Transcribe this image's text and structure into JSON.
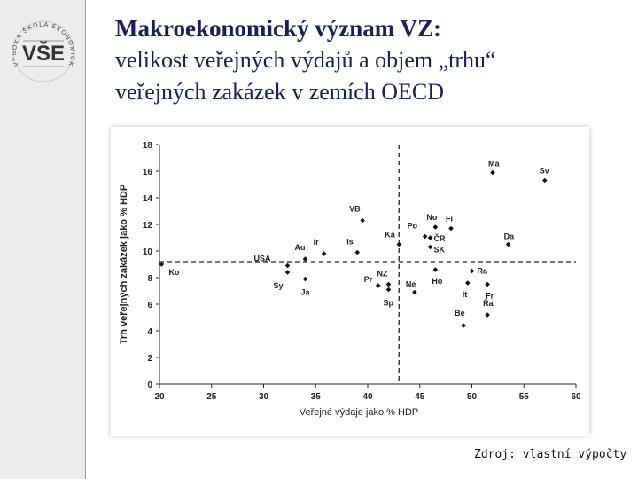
{
  "header": {
    "title_line1": "Makroekonomický význam VZ:",
    "title_line2": "velikost veřejných výdajů a objem „trhu“",
    "title_line3": "veřejných zakázek v zemích OECD"
  },
  "logo": {
    "text": "VŠE",
    "ring_text": "VYSOKÁ ŠKOLA EKONOMICKÁ V PRAZE"
  },
  "source": "Zdroj: vlastní výpočty",
  "colors": {
    "title": "#1a1f56",
    "marker": "#111111",
    "sidebar": "#ededed"
  },
  "chart_data": {
    "type": "scatter",
    "xlabel": "Veřejné výdaje jako % HDP",
    "ylabel": "Trh veřejných zakázek jako % HDP",
    "xlim": [
      20,
      60
    ],
    "ylim": [
      0,
      18
    ],
    "xticks": [
      20,
      25,
      30,
      35,
      40,
      45,
      50,
      55,
      60
    ],
    "yticks": [
      0,
      2,
      4,
      6,
      8,
      10,
      12,
      14,
      16,
      18
    ],
    "grid": false,
    "reference_lines": {
      "x": 43,
      "y": 9.2
    },
    "points": [
      {
        "label": "Ko",
        "x": 20.2,
        "y": 9.0
      },
      {
        "label": "USA",
        "x": 32.3,
        "y": 8.9
      },
      {
        "label": "Sy",
        "x": 32.3,
        "y": 8.4
      },
      {
        "label": "Au",
        "x": 34.0,
        "y": 9.4
      },
      {
        "label": "Ja",
        "x": 34.0,
        "y": 7.9
      },
      {
        "label": "Ir",
        "x": 35.8,
        "y": 9.8
      },
      {
        "label": "Is",
        "x": 39.0,
        "y": 9.9
      },
      {
        "label": "VB",
        "x": 39.5,
        "y": 12.3
      },
      {
        "label": "Pr",
        "x": 41.0,
        "y": 7.4
      },
      {
        "label": "NZ",
        "x": 42.0,
        "y": 7.5
      },
      {
        "label": "Sp",
        "x": 42.0,
        "y": 7.1
      },
      {
        "label": "Ka",
        "x": 43.0,
        "y": 10.5
      },
      {
        "label": "Ne",
        "x": 44.5,
        "y": 6.9
      },
      {
        "label": "Po",
        "x": 45.5,
        "y": 11.1
      },
      {
        "label": "No",
        "x": 46.5,
        "y": 11.8
      },
      {
        "label": "ČR",
        "x": 46.0,
        "y": 11.0
      },
      {
        "label": "Fi",
        "x": 48.0,
        "y": 11.7
      },
      {
        "label": "SK",
        "x": 46.0,
        "y": 10.3
      },
      {
        "label": "Ho",
        "x": 46.5,
        "y": 8.6
      },
      {
        "label": "Ma",
        "x": 52.0,
        "y": 15.9
      },
      {
        "label": "Sv",
        "x": 57.0,
        "y": 15.3
      },
      {
        "label": "Da",
        "x": 53.5,
        "y": 10.5
      },
      {
        "label": "Ra",
        "x": 50.0,
        "y": 8.5
      },
      {
        "label": "It",
        "x": 49.6,
        "y": 7.6
      },
      {
        "label": "Fr",
        "x": 51.5,
        "y": 7.5
      },
      {
        "label": "Řa",
        "x": 51.5,
        "y": 5.2
      },
      {
        "label": "Be",
        "x": 49.2,
        "y": 4.4
      }
    ]
  }
}
